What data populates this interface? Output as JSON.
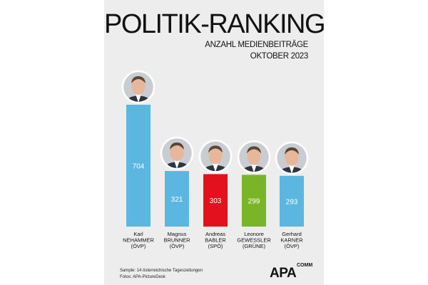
{
  "title": "POLITIK-RANKING",
  "subtitle": "ANZAHL MEDIENBEITRÄGE",
  "period": "OKTOBER 2023",
  "chart_data": {
    "type": "bar",
    "title": "POLITIK-RANKING",
    "subtitle": "ANZAHL MEDIENBEITRÄGE",
    "period": "OKTOBER 2023",
    "xlabel": "",
    "ylabel": "",
    "ylim": [
      0,
      704
    ],
    "categories": [
      {
        "first": "Karl",
        "last": "NEHAMMER",
        "party": "(ÖVP)"
      },
      {
        "first": "Magnus",
        "last": "BRUNNER",
        "party": "(ÖVP)"
      },
      {
        "first": "Andreas",
        "last": "BABLER",
        "party": "(SPÖ)"
      },
      {
        "first": "Leonore",
        "last": "GEWESSLER",
        "party": "(GRÜNE)"
      },
      {
        "first": "Gerhard",
        "last": "KARNER",
        "party": "(ÖVP)"
      }
    ],
    "values": [
      704,
      321,
      303,
      299,
      293
    ],
    "colors": [
      "#5bb7e0",
      "#5bb7e0",
      "#e3101e",
      "#7ab527",
      "#5bb7e0"
    ],
    "grid": false,
    "legend": "none"
  },
  "footnote": {
    "sample": "Sample: 14 österreichische Tageszeitungen",
    "photos": "Fotos: APA-PictureDesk"
  },
  "logo": {
    "main": "APA",
    "sub": "COMM"
  },
  "icons": [
    "portrait-photo-icon",
    "apa-logo-icon"
  ]
}
